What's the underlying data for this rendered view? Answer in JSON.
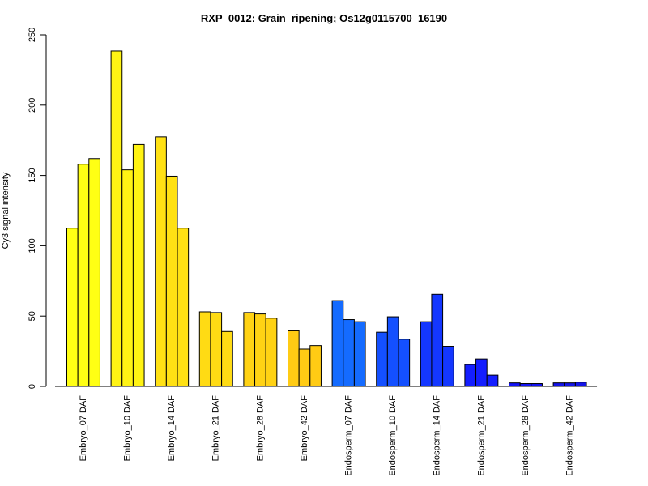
{
  "chart_data": {
    "type": "bar",
    "title": "RXP_0012: Grain_ripening; Os12g0115700_16190",
    "xlabel": "",
    "ylabel": "Cy3 signal intensity",
    "ylim": [
      0,
      250
    ],
    "yticks": [
      "0",
      "50",
      "100",
      "150",
      "200",
      "250"
    ],
    "categories": [
      "Embryo_07 DAF",
      "Embryo_10 DAF",
      "Embryo_14 DAF",
      "Embryo_21 DAF",
      "Embryo_28 DAF",
      "Embryo_42 DAF",
      "Endosperm_07 DAF",
      "Endosperm_10 DAF",
      "Endosperm_14 DAF",
      "Endosperm_21 DAF",
      "Endosperm_28 DAF",
      "Endosperm_42 DAF"
    ],
    "replicates_per_category": 3,
    "values": [
      [
        112.5,
        158,
        162
      ],
      [
        238.5,
        154,
        172
      ],
      [
        177.5,
        149.5,
        112.5
      ],
      [
        53,
        52.5,
        39
      ],
      [
        52.5,
        51.5,
        48.5
      ],
      [
        39.5,
        26.5,
        29
      ],
      [
        61,
        47.5,
        46
      ],
      [
        38.5,
        49.5,
        33.5
      ],
      [
        46,
        65.5,
        28.5
      ],
      [
        15.5,
        19.5,
        8
      ],
      [
        2.5,
        2,
        2
      ],
      [
        2.5,
        2.5,
        3
      ]
    ],
    "colors": [
      "#FFFF14",
      "#FFF314",
      "#FFE114",
      "#FFDB14",
      "#FFD214",
      "#FFCB14",
      "#146BFF",
      "#1450FF",
      "#1437FF",
      "#141EFF",
      "#1414F5",
      "#1414E8"
    ],
    "grid": false,
    "legend": "none"
  }
}
